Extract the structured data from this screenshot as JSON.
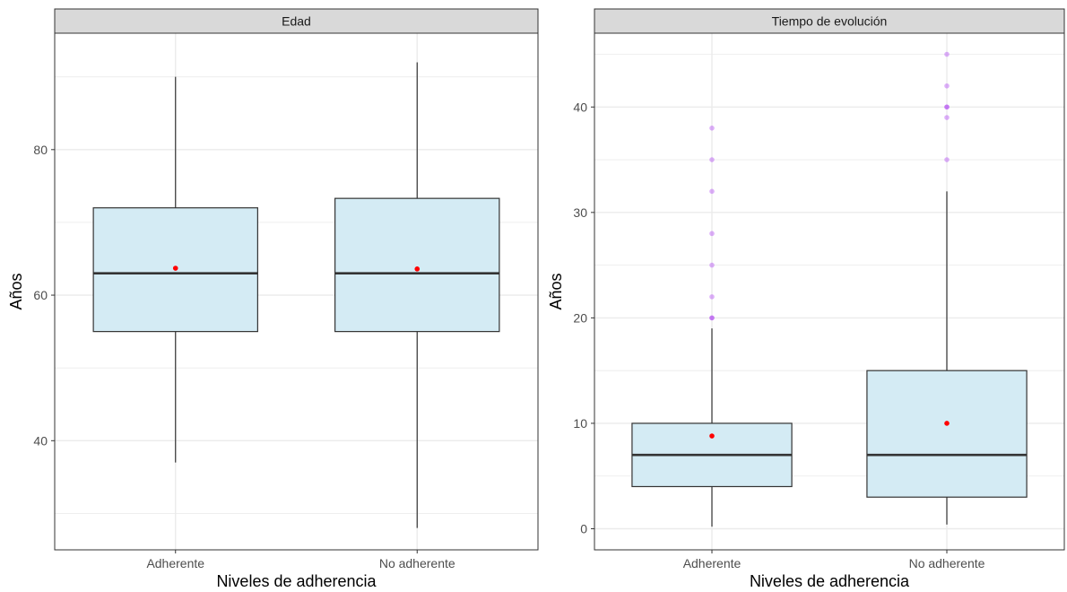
{
  "chart_data": [
    {
      "type": "box",
      "title": "Edad",
      "xlabel": "Niveles de adherencia",
      "ylabel": "Años",
      "ylim": [
        25,
        96
      ],
      "yticks": [
        40,
        60,
        80
      ],
      "grid": true,
      "categories": [
        "Adherente",
        "No adherente"
      ],
      "boxes": [
        {
          "category": "Adherente",
          "min": 37,
          "q1": 55,
          "median": 63,
          "q3": 72,
          "max": 90,
          "mean": 63.7,
          "outliers": []
        },
        {
          "category": "No adherente",
          "min": 28,
          "q1": 55,
          "median": 63,
          "q3": 73.3,
          "max": 92,
          "mean": 63.6,
          "outliers": []
        }
      ]
    },
    {
      "type": "box",
      "title": "Tiempo de evolución",
      "xlabel": "Niveles de adherencia",
      "ylabel": "Años",
      "ylim": [
        -2,
        47
      ],
      "yticks": [
        0,
        10,
        20,
        30,
        40
      ],
      "grid": true,
      "categories": [
        "Adherente",
        "No adherente"
      ],
      "boxes": [
        {
          "category": "Adherente",
          "min": 0.2,
          "q1": 4,
          "median": 7,
          "q3": 10,
          "max": 19,
          "mean": 8.8,
          "outliers": [
            20,
            20,
            22,
            25,
            28,
            32,
            35,
            38
          ]
        },
        {
          "category": "No adherente",
          "min": 0.4,
          "q1": 3,
          "median": 7,
          "q3": 15,
          "max": 32,
          "mean": 10,
          "outliers": [
            35,
            39,
            40,
            40,
            42,
            45
          ]
        }
      ]
    }
  ],
  "colors": {
    "box_fill": "#d4ebf4",
    "box_stroke": "#333333",
    "median": "#333333",
    "mean": "#ff0000",
    "outlier": "#a020f0",
    "strip": "#d9d9d9",
    "grid": "#ebebeb",
    "panel_border": "#333333",
    "axis_text": "#4d4d4d",
    "title_text": "#000000"
  }
}
